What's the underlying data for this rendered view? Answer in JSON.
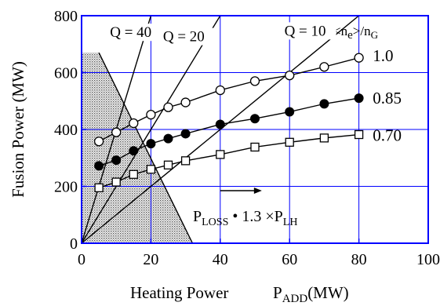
{
  "chart_data": {
    "type": "scatter",
    "xlabel": "Heating Power",
    "xlabel_symbol": {
      "base": "P",
      "sub": "ADD",
      "unit": "(MW)"
    },
    "ylabel": "Fusion Power (MW)",
    "xlim": [
      0,
      100
    ],
    "ylim": [
      0,
      800
    ],
    "x_ticks": [
      0,
      20,
      40,
      60,
      80,
      100
    ],
    "y_ticks": [
      0,
      200,
      400,
      600,
      800
    ],
    "grid": true,
    "colors": {
      "axes": "#0000ff",
      "grid": "#0000ff",
      "data": "#000000",
      "shade": "#888888"
    },
    "legend_title": {
      "a": "<n",
      "a_sub": "e",
      "b": ">/n",
      "b_sub": "G"
    },
    "series": [
      {
        "name": "1.0",
        "marker": "open-circle",
        "x": [
          5,
          10,
          15,
          20,
          25,
          30,
          40,
          50,
          60,
          70,
          80
        ],
        "y": [
          358,
          390,
          422,
          452,
          478,
          495,
          538,
          570,
          590,
          620,
          652
        ]
      },
      {
        "name": "0.85",
        "marker": "filled-circle",
        "x": [
          5,
          10,
          15,
          20,
          25,
          30,
          40,
          50,
          60,
          70,
          80
        ],
        "y": [
          272,
          292,
          325,
          350,
          368,
          385,
          418,
          438,
          462,
          490,
          510
        ]
      },
      {
        "name": "0.70",
        "marker": "open-square",
        "x": [
          5,
          10,
          15,
          20,
          25,
          30,
          40,
          50,
          60,
          70,
          80
        ],
        "y": [
          195,
          215,
          242,
          260,
          275,
          290,
          312,
          338,
          355,
          370,
          382
        ]
      }
    ],
    "q_lines": [
      {
        "label": "Q = 40",
        "q": 40
      },
      {
        "label": "Q = 20",
        "q": 20
      },
      {
        "label": "Q = 10",
        "q": 10
      }
    ],
    "threshold_line": {
      "x1": 5,
      "y1": 670,
      "x2": 32,
      "y2": 0
    },
    "shaded_region": {
      "x_min": 0,
      "x_max": 32,
      "description": "below P_LOSS threshold"
    },
    "annotation": {
      "arrow_from": [
        40,
        185
      ],
      "arrow_to": [
        52,
        185
      ],
      "text_base": "P",
      "text_sub": "LOSS",
      "text_mid": " • 1.3 ×P",
      "text_sub2": "LH"
    }
  }
}
